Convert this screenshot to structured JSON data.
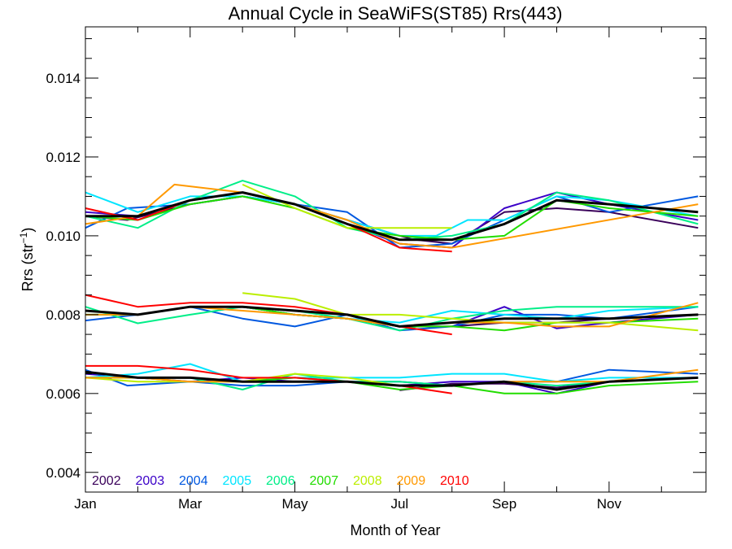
{
  "chart_data": {
    "type": "line",
    "title": "Annual Cycle in SeaWiFS(ST85) Rrs(443)",
    "xlabel": "Month of Year",
    "ylabel_main": "Rrs (str",
    "ylabel_sup": "−1",
    "ylabel_close": ")",
    "xlim": [
      1,
      12.85
    ],
    "ylim": [
      0.0035,
      0.0153
    ],
    "x_ticks": [
      {
        "value": 1,
        "label": "Jan"
      },
      {
        "value": 3,
        "label": "Mar"
      },
      {
        "value": 5,
        "label": "May"
      },
      {
        "value": 7,
        "label": "Jul"
      },
      {
        "value": 9,
        "label": "Sep"
      },
      {
        "value": 11,
        "label": "Nov"
      }
    ],
    "x_minor_ticks": [
      2,
      4,
      6,
      8,
      10,
      12
    ],
    "y_ticks": [
      {
        "value": 0.004,
        "label": "0.004"
      },
      {
        "value": 0.006,
        "label": "0.006"
      },
      {
        "value": 0.008,
        "label": "0.008"
      },
      {
        "value": 0.01,
        "label": "0.010"
      },
      {
        "value": 0.012,
        "label": "0.012"
      },
      {
        "value": 0.014,
        "label": "0.014"
      }
    ],
    "y_minor_step": 0.0005,
    "grid": false,
    "legend_position": "bottom-left",
    "series": [
      {
        "name": "2002",
        "color": "#3a005a",
        "groups": [
          {
            "x": [
              1,
              1.8,
              3,
              4,
              5,
              6,
              7,
              7.3,
              8,
              9,
              10,
              11,
              12.7
            ],
            "y": [
              0.0105,
              0.0104,
              0.0108,
              0.011,
              0.0108,
              0.0104,
              0.01,
              0.0099,
              0.0098,
              0.0106,
              0.0107,
              0.0106,
              0.0102
            ]
          },
          {
            "x": [
              1,
              2,
              3,
              4,
              5,
              6,
              7,
              8,
              9,
              10,
              11,
              12.7
            ],
            "y": [
              0.0081,
              0.008,
              0.0082,
              0.0082,
              0.008,
              0.0079,
              0.0077,
              0.0077,
              0.0078,
              0.0078,
              0.0079,
              0.008
            ]
          },
          {
            "x": [
              7,
              8,
              9,
              10,
              11
            ],
            "y": [
              0.00608,
              0.00625,
              0.00625,
              0.00615,
              0.0063
            ]
          }
        ]
      },
      {
        "name": "2003",
        "color": "#3b00c8",
        "groups": [
          {
            "x": [
              1,
              2,
              3,
              4,
              5,
              6,
              7,
              8,
              9,
              10,
              11,
              12.7
            ],
            "y": [
              0.0106,
              0.0105,
              0.0109,
              0.0111,
              0.0108,
              0.0103,
              0.0098,
              0.0097,
              0.0107,
              0.0111,
              0.0108,
              0.0104
            ]
          },
          {
            "x": [
              1,
              2,
              3,
              4,
              5,
              6,
              7,
              8,
              9,
              10,
              11,
              12.7
            ],
            "y": [
              0.0081,
              0.008,
              0.0082,
              0.0082,
              0.008,
              0.0079,
              0.0077,
              0.0077,
              0.0082,
              0.00765,
              0.0078,
              0.008
            ]
          },
          {
            "x": [
              1,
              2,
              3,
              4,
              5,
              6,
              7,
              8,
              9,
              10,
              11,
              12.7
            ],
            "y": [
              0.0065,
              0.0064,
              0.0063,
              0.0064,
              0.0063,
              0.0063,
              0.0062,
              0.0063,
              0.0063,
              0.006,
              0.0063,
              0.0064
            ]
          }
        ]
      },
      {
        "name": "2004",
        "color": "#0058e0",
        "groups": [
          {
            "x": [
              1,
              1.8,
              3,
              4,
              5,
              6,
              7,
              8,
              9,
              10,
              11,
              12.7
            ],
            "y": [
              0.0102,
              0.0107,
              0.0108,
              0.011,
              0.0108,
              0.0106,
              0.0097,
              0.0098,
              0.0104,
              0.011,
              0.0106,
              0.011
            ]
          },
          {
            "x": [
              1,
              2,
              3,
              4,
              5,
              6,
              7,
              8,
              9,
              10,
              11,
              12.7
            ],
            "y": [
              0.00785,
              0.008,
              0.0082,
              0.0079,
              0.0077,
              0.008,
              0.0076,
              0.0077,
              0.008,
              0.008,
              0.0079,
              0.0082
            ]
          },
          {
            "x": [
              1,
              1.8,
              3,
              4,
              5,
              6,
              7,
              8,
              9,
              10,
              11,
              12.7
            ],
            "y": [
              0.0066,
              0.0062,
              0.0063,
              0.0062,
              0.0062,
              0.0063,
              0.0063,
              0.0062,
              0.0063,
              0.0063,
              0.0066,
              0.0065
            ]
          }
        ]
      },
      {
        "name": "2005",
        "color": "#00e5ff",
        "groups": [
          {
            "x": [
              1,
              2,
              3,
              4,
              5,
              6,
              7,
              7.7,
              8.3,
              9,
              10,
              11,
              12.7
            ],
            "y": [
              0.0111,
              0.0106,
              0.011,
              0.011,
              0.0108,
              0.0104,
              0.01,
              0.01,
              0.0104,
              0.0104,
              0.011,
              0.0109,
              0.0105
            ]
          },
          {
            "x": [
              1,
              2,
              3,
              4,
              5,
              6,
              7,
              8,
              9,
              10,
              11,
              12.7
            ],
            "y": [
              0.008,
              0.008,
              0.0082,
              0.0082,
              0.008,
              0.0079,
              0.0078,
              0.0081,
              0.008,
              0.0079,
              0.0081,
              0.0082
            ]
          },
          {
            "x": [
              1,
              2,
              3,
              4,
              5,
              6,
              7,
              8,
              9,
              10,
              11,
              12.7
            ],
            "y": [
              0.0064,
              0.0065,
              0.00675,
              0.0063,
              0.0064,
              0.0064,
              0.0064,
              0.0065,
              0.0065,
              0.0063,
              0.0064,
              0.0064
            ]
          }
        ]
      },
      {
        "name": "2006",
        "color": "#00ee88",
        "groups": [
          {
            "x": [
              1,
              2,
              3,
              4,
              5,
              6,
              7,
              8,
              9,
              10,
              11,
              12.7
            ],
            "y": [
              0.0105,
              0.0102,
              0.0109,
              0.0114,
              0.011,
              0.0102,
              0.0099,
              0.01,
              0.0103,
              0.0111,
              0.0109,
              0.0103
            ]
          },
          {
            "x": [
              1,
              2,
              3,
              4,
              5,
              6,
              7,
              8,
              9,
              10,
              11,
              12.7
            ],
            "y": [
              0.0082,
              0.00778,
              0.008,
              0.0082,
              0.0081,
              0.0079,
              0.0076,
              0.0079,
              0.0081,
              0.0082,
              0.0082,
              0.0082
            ]
          },
          {
            "x": [
              1,
              2,
              3,
              4,
              5,
              6,
              7,
              8,
              9,
              10,
              11,
              12.7
            ],
            "y": [
              0.0064,
              0.0064,
              0.0064,
              0.0061,
              0.0065,
              0.0063,
              0.0063,
              0.0062,
              0.0063,
              0.0062,
              0.0063,
              0.0064
            ]
          }
        ]
      },
      {
        "name": "2007",
        "color": "#22dd00",
        "groups": [
          {
            "x": [
              1,
              2,
              3,
              4,
              5,
              6,
              7,
              8,
              9,
              10,
              11,
              12.7
            ],
            "y": [
              0.0105,
              0.0104,
              0.0108,
              0.011,
              0.0107,
              0.0102,
              0.01,
              0.0099,
              0.01,
              0.0109,
              0.0107,
              0.0105
            ]
          },
          {
            "x": [
              1,
              2,
              3,
              4,
              5,
              6,
              7,
              8,
              9,
              10,
              11,
              12.7
            ],
            "y": [
              0.008,
              0.008,
              0.0082,
              0.0082,
              0.008,
              0.0079,
              0.0077,
              0.0077,
              0.0076,
              0.0078,
              0.0078,
              0.0079
            ]
          },
          {
            "x": [
              1,
              2,
              3,
              4,
              5,
              6,
              7,
              8,
              9,
              10,
              11,
              12.7
            ],
            "y": [
              0.0064,
              0.0064,
              0.0064,
              0.0063,
              0.0064,
              0.0063,
              0.0061,
              0.0062,
              0.006,
              0.006,
              0.0062,
              0.0063
            ]
          }
        ]
      },
      {
        "name": "2008",
        "color": "#bbee00",
        "groups": [
          {
            "x": [
              4,
              5,
              6,
              7,
              8
            ],
            "y": [
              0.0113,
              0.0107,
              0.0102,
              0.0102,
              0.0102
            ]
          },
          {
            "x": [
              4,
              5,
              6,
              7,
              8,
              9,
              10,
              11,
              12.7
            ],
            "y": [
              0.00855,
              0.0084,
              0.008,
              0.008,
              0.0079,
              0.0078,
              0.0078,
              0.0078,
              0.0076
            ]
          },
          {
            "x": [
              1,
              2,
              3,
              4,
              5,
              6,
              7,
              8
            ],
            "y": [
              0.0064,
              0.0063,
              0.0063,
              0.0063,
              0.0065,
              0.0064,
              0.0062,
              0.0062
            ]
          }
        ]
      },
      {
        "name": "2009",
        "color": "#ff9900",
        "groups": [
          {
            "x": [
              1,
              2,
              2.7,
              4,
              5,
              6,
              7,
              8,
              12.7
            ],
            "y": [
              0.0103,
              0.0105,
              0.0113,
              0.0111,
              0.0108,
              0.0104,
              0.0098,
              0.0097,
              0.0108
            ]
          },
          {
            "x": [
              1,
              2,
              3,
              4,
              5,
              6,
              7,
              8,
              9,
              10,
              11,
              12.7
            ],
            "y": [
              0.008,
              0.008,
              0.0082,
              0.0081,
              0.008,
              0.0079,
              0.0077,
              0.0078,
              0.0078,
              0.0077,
              0.0077,
              0.0083
            ]
          },
          {
            "x": [
              1,
              2,
              3,
              4,
              5,
              6,
              7,
              8,
              9,
              10,
              11,
              12.7
            ],
            "y": [
              0.0064,
              0.0064,
              0.0063,
              0.0063,
              0.0063,
              0.0063,
              0.0062,
              0.0062,
              0.0063,
              0.0063,
              0.0063,
              0.0066
            ]
          }
        ]
      },
      {
        "name": "2010",
        "color": "#ff0000",
        "groups": [
          {
            "x": [
              1,
              2,
              3,
              4,
              5,
              6,
              7,
              8
            ],
            "y": [
              0.0107,
              0.0104,
              0.0109,
              0.0111,
              0.0108,
              0.0103,
              0.0097,
              0.0096
            ]
          },
          {
            "x": [
              1,
              2,
              3,
              4,
              5,
              6,
              7,
              8
            ],
            "y": [
              0.0085,
              0.0082,
              0.0083,
              0.0083,
              0.0082,
              0.008,
              0.0077,
              0.0075
            ]
          },
          {
            "x": [
              1,
              2,
              3,
              4,
              5,
              6,
              7,
              8
            ],
            "y": [
              0.0067,
              0.0067,
              0.0066,
              0.0064,
              0.0064,
              0.0063,
              0.0062,
              0.006
            ]
          }
        ]
      },
      {
        "color": "#000000",
        "groups": [
          {
            "x": [
              1,
              2,
              3,
              4,
              5,
              6,
              7,
              8,
              9,
              10,
              11,
              12.7
            ],
            "y": [
              0.0105,
              0.0105,
              0.0109,
              0.0111,
              0.0108,
              0.0103,
              0.0099,
              0.0099,
              0.0103,
              0.0109,
              0.0108,
              0.0106
            ]
          },
          {
            "x": [
              1,
              2,
              3,
              4,
              5,
              6,
              7,
              8,
              9,
              10,
              11,
              12.7
            ],
            "y": [
              0.0081,
              0.008,
              0.0082,
              0.0082,
              0.0081,
              0.008,
              0.0077,
              0.0078,
              0.0079,
              0.0079,
              0.0079,
              0.008
            ]
          },
          {
            "x": [
              1,
              2,
              3,
              4,
              5,
              6,
              7,
              8,
              9,
              10,
              11,
              12.7
            ],
            "y": [
              0.00655,
              0.0064,
              0.0064,
              0.0063,
              0.0063,
              0.0063,
              0.0062,
              0.0062,
              0.0063,
              0.0061,
              0.0063,
              0.0064
            ]
          }
        ]
      }
    ]
  }
}
